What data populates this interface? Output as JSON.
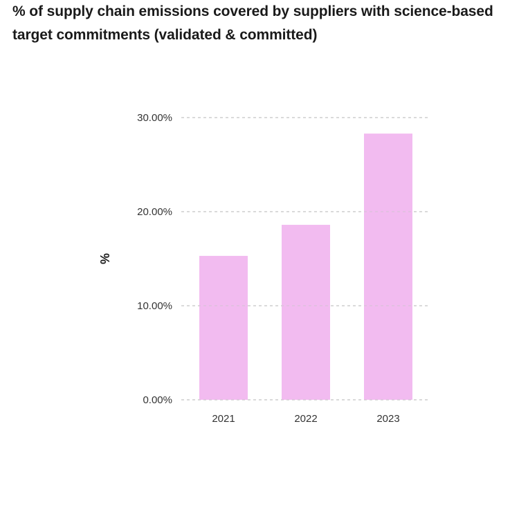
{
  "chart_data": {
    "type": "bar",
    "title": "% of supply chain emissions covered by suppliers with science-based target commitments (validated & committed)",
    "xlabel": "",
    "ylabel": "%",
    "categories": [
      "2021",
      "2022",
      "2023"
    ],
    "values": [
      15.3,
      18.6,
      28.3
    ],
    "ylim": [
      0,
      30
    ],
    "yticks": [
      0,
      10,
      20,
      30
    ],
    "ytick_labels": [
      "0.00%",
      "10.00%",
      "20.00%",
      "30.00%"
    ],
    "grid": true,
    "legend": "none",
    "bar_color": "#f2bbf0",
    "grid_color": "#c8c8c8"
  }
}
